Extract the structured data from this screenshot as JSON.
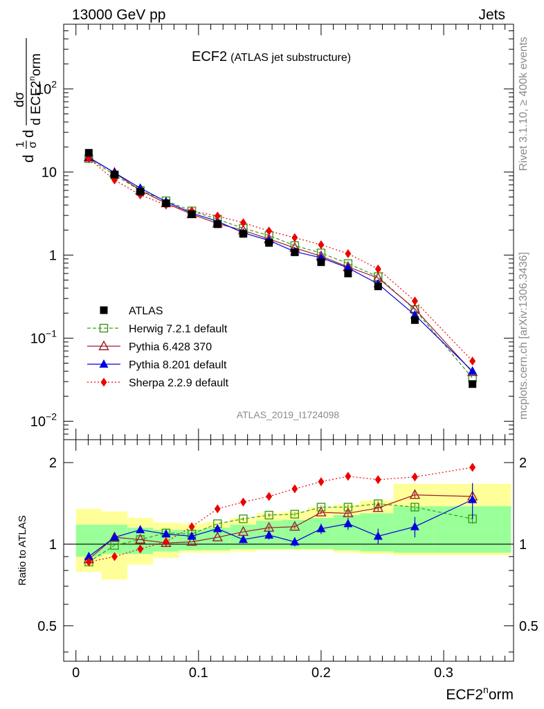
{
  "header": {
    "left": "13000 GeV pp",
    "right": "Jets"
  },
  "side_labels": {
    "top": "Rivet 3.1.10, ≥ 400k events",
    "bottom": "mcplots.cern.ch [arXiv:1306.3436]"
  },
  "plot_title": {
    "main": "ECF2",
    "sub": "(ATLAS jet substructure)"
  },
  "analysis_tag": "ATLAS_2019_I1724098",
  "colors": {
    "atlas": "#000000",
    "herwig": "#3a9a1a",
    "pythia6": "#9b1b2b",
    "pythia8": "#0000dd",
    "sherpa": "#ee0000",
    "band_inner": "#99ff99",
    "band_outer": "#ffff99"
  },
  "chart_data": [
    {
      "type": "scatter",
      "panel": "main",
      "yscale": "log",
      "ylim": [
        0.006,
        600
      ],
      "xlim": [
        -0.01,
        0.357
      ],
      "ylabel": {
        "d1": "d",
        "frac1": "1",
        "sigma1": "σ",
        "d2": "d",
        "dsig": "dσ",
        "dx": "d ECF2",
        "sup": "n",
        "tail": "orm"
      },
      "ytick_labels": [
        "10",
        "1"
      ],
      "ytick_mantissa": "10",
      "ytick_exponents": [
        "2",
        "−1",
        "−2"
      ],
      "x": [
        0.0105,
        0.0315,
        0.0525,
        0.0735,
        0.0945,
        0.1155,
        0.1365,
        0.1575,
        0.1785,
        0.2,
        0.222,
        0.2465,
        0.2765,
        0.3235
      ],
      "series": [
        {
          "name": "ATLAS",
          "values": [
            17,
            9.3,
            5.8,
            4.2,
            3.1,
            2.35,
            1.8,
            1.4,
            1.08,
            0.82,
            0.6,
            0.42,
            0.165,
            0.028
          ]
        },
        {
          "name": "Herwig 7.2.1 default",
          "values": [
            14.5,
            9.2,
            6.0,
            4.5,
            3.4,
            2.7,
            2.1,
            1.72,
            1.3,
            1.06,
            0.79,
            0.55,
            0.22,
            0.033
          ]
        },
        {
          "name": "Pythia 6.428 370",
          "values": [
            14.9,
            9.8,
            6.0,
            4.2,
            3.1,
            2.4,
            1.98,
            1.56,
            1.22,
            0.97,
            0.72,
            0.53,
            0.225,
            0.039
          ]
        },
        {
          "name": "Pythia 8.201 default",
          "values": [
            15,
            9.8,
            6.4,
            4.4,
            3.2,
            2.55,
            1.85,
            1.5,
            1.1,
            0.93,
            0.7,
            0.45,
            0.19,
            0.04
          ]
        },
        {
          "name": "Sherpa 2.2.9 default",
          "values": [
            14.5,
            8.0,
            5.3,
            4.0,
            3.4,
            2.95,
            2.45,
            1.95,
            1.62,
            1.33,
            1.04,
            0.68,
            0.28,
            0.053
          ]
        }
      ]
    },
    {
      "type": "scatter",
      "panel": "ratio",
      "ylabel": "Ratio to ATLAS",
      "ylim": [
        0.37,
        2.43
      ],
      "yticks": [
        0.5,
        1,
        2
      ],
      "ytick_labels": [
        "0.5",
        "1",
        "2"
      ],
      "xlabel": {
        "main": "ECF2",
        "sup": "n",
        "tail": "orm"
      },
      "xticks": [
        0,
        0.1,
        0.2,
        0.3
      ],
      "xtick_labels": [
        "0",
        "0.1",
        "0.2",
        "0.3"
      ],
      "bin_edges": [
        0.0,
        0.021,
        0.042,
        0.063,
        0.084,
        0.105,
        0.126,
        0.147,
        0.168,
        0.189,
        0.21,
        0.232,
        0.259,
        0.292,
        0.355
      ],
      "band_inner": {
        "low": [
          0.9,
          0.92,
          0.92,
          0.94,
          0.95,
          0.95,
          0.96,
          0.96,
          0.96,
          0.96,
          0.95,
          0.94,
          0.93,
          0.93
        ],
        "high": [
          1.18,
          1.18,
          1.15,
          1.13,
          1.13,
          1.15,
          1.18,
          1.22,
          1.23,
          1.25,
          1.28,
          1.3,
          1.38,
          1.38
        ]
      },
      "band_outer": {
        "low": [
          0.79,
          0.74,
          0.84,
          0.89,
          0.93,
          0.93,
          0.94,
          0.95,
          0.95,
          0.95,
          0.93,
          0.92,
          0.91,
          0.91
        ],
        "high": [
          1.35,
          1.32,
          1.25,
          1.2,
          1.19,
          1.21,
          1.25,
          1.3,
          1.32,
          1.37,
          1.4,
          1.45,
          1.67,
          1.67
        ]
      },
      "series": [
        {
          "name": "Herwig 7.2.1 default",
          "values": [
            0.86,
            0.99,
            1.04,
            1.1,
            1.09,
            1.19,
            1.24,
            1.28,
            1.29,
            1.37,
            1.37,
            1.41,
            1.37,
            1.24
          ]
        },
        {
          "name": "Pythia 6.428 370",
          "values": [
            0.88,
            1.06,
            1.04,
            1.01,
            1.02,
            1.06,
            1.11,
            1.15,
            1.16,
            1.31,
            1.3,
            1.36,
            1.52,
            1.5
          ]
        },
        {
          "name": "Pythia 8.201 default",
          "values": [
            0.9,
            1.06,
            1.13,
            1.09,
            1.07,
            1.14,
            1.04,
            1.08,
            1.02,
            1.14,
            1.19,
            1.07,
            1.16,
            1.46
          ]
        },
        {
          "name": "Sherpa 2.2.9 default",
          "values": [
            0.86,
            0.9,
            0.96,
            1.02,
            1.16,
            1.35,
            1.43,
            1.5,
            1.6,
            1.7,
            1.78,
            1.73,
            1.77,
            1.92
          ]
        }
      ],
      "errors": {
        "Pythia 8.201 default": [
          0.02,
          0.02,
          0.02,
          0.02,
          0.03,
          0.03,
          0.03,
          0.04,
          0.04,
          0.05,
          0.06,
          0.07,
          0.1,
          0.22
        ],
        "Pythia 6.428 370": [
          0.01,
          0.01,
          0.01,
          0.01,
          0.01,
          0.01,
          0.01,
          0.02,
          0.02,
          0.02,
          0.03,
          0.04,
          0.04,
          0.06
        ],
        "Herwig 7.2.1 default": [
          0.01,
          0.01,
          0.01,
          0.01,
          0.01,
          0.01,
          0.02,
          0.02,
          0.02,
          0.02,
          0.03,
          0.03,
          0.04,
          0.05
        ],
        "Sherpa 2.2.9 default": [
          0.01,
          0.01,
          0.01,
          0.01,
          0.01,
          0.01,
          0.01,
          0.02,
          0.02,
          0.02,
          0.03,
          0.03,
          0.04,
          0.05
        ]
      }
    }
  ]
}
